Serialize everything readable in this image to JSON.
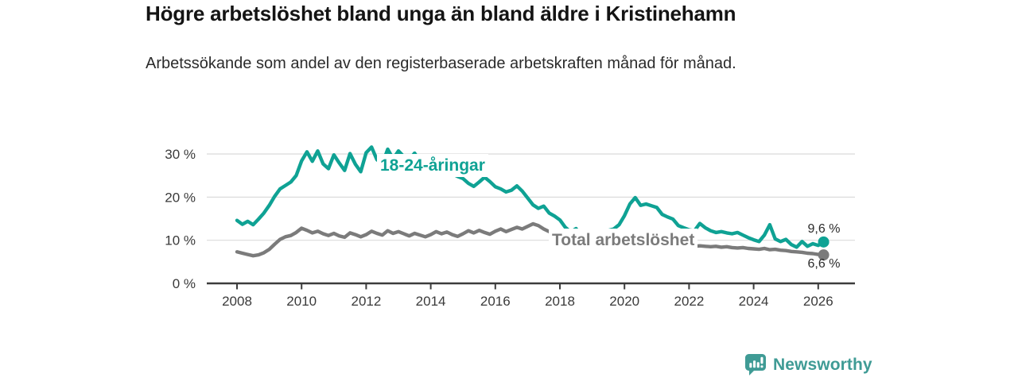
{
  "header": {
    "title": "Högre arbetslöshet bland unga än bland äldre i Kristinehamn",
    "subtitle": "Arbetssökande som andel av den registerbaserade arbetskraften månad för månad."
  },
  "chart_data": {
    "type": "line",
    "title": "Högre arbetslöshet bland unga än bland äldre i Kristinehamn",
    "subtitle": "Arbetssökande som andel av den registerbaserade arbetskraften månad för månad.",
    "unit": "%",
    "x_start": 2008,
    "x_step_years": 0.166667,
    "xlim": [
      2007.05,
      2027.1
    ],
    "ylim": [
      0,
      33
    ],
    "grid": "horizontal-only",
    "legend": "inline-labels-on-lines",
    "grid_color": "#dbdbdb",
    "axis_color": "#3c3c3c",
    "tick_text_color": "#3a3a3a",
    "x_ticks": [
      2008,
      2010,
      2012,
      2014,
      2016,
      2018,
      2020,
      2022,
      2024,
      2026
    ],
    "y_ticks": [
      {
        "value": 0,
        "label": "0 %"
      },
      {
        "value": 10,
        "label": "10 %"
      },
      {
        "value": 20,
        "label": "20 %"
      },
      {
        "value": 30,
        "label": "30 %"
      }
    ],
    "series": [
      {
        "name": "18-24-åringar",
        "color": "#0fa294",
        "end_label": "9,6 %",
        "end_value": 9.6,
        "values": [
          14.6,
          13.7,
          14.4,
          13.6,
          14.9,
          16.3,
          18.1,
          20.2,
          21.9,
          22.7,
          23.5,
          25.0,
          28.4,
          30.5,
          28.3,
          30.7,
          27.7,
          26.6,
          29.8,
          27.9,
          26.2,
          30.1,
          27.6,
          25.9,
          30.3,
          31.6,
          28.7,
          27.6,
          31.1,
          28.9,
          30.7,
          29.4,
          28.6,
          30.2,
          28.3,
          27.5,
          27.9,
          26.8,
          27.4,
          26.2,
          25.4,
          24.8,
          24.3,
          23.2,
          22.5,
          23.5,
          24.6,
          23.6,
          22.4,
          21.9,
          21.2,
          21.6,
          22.6,
          21.4,
          19.8,
          18.2,
          17.4,
          17.9,
          16.3,
          15.6,
          14.7,
          13.0,
          11.9,
          12.7,
          10.9,
          10.3,
          10.1,
          10.5,
          11.7,
          12.3,
          12.6,
          13.6,
          15.7,
          18.4,
          19.9,
          18.1,
          18.4,
          18.0,
          17.6,
          16.0,
          15.4,
          14.9,
          13.4,
          12.9,
          12.4,
          12.2,
          13.9,
          12.9,
          12.2,
          11.8,
          12.0,
          11.7,
          11.5,
          11.8,
          11.2,
          10.6,
          10.1,
          9.7,
          11.2,
          13.6,
          10.3,
          9.7,
          10.2,
          9.0,
          8.4,
          9.7,
          8.6,
          9.2,
          8.8,
          9.6
        ]
      },
      {
        "name": "Total arbetslöshet",
        "color": "#7b7b7b",
        "end_label": "6,6 %",
        "end_value": 6.6,
        "values": [
          7.3,
          7.0,
          6.7,
          6.4,
          6.6,
          7.1,
          7.9,
          9.1,
          10.2,
          10.8,
          11.1,
          11.8,
          12.8,
          12.3,
          11.7,
          12.1,
          11.5,
          11.1,
          11.6,
          11.0,
          10.7,
          11.7,
          11.3,
          10.8,
          11.3,
          12.1,
          11.6,
          11.2,
          12.2,
          11.6,
          12.0,
          11.5,
          11.0,
          11.6,
          11.2,
          10.8,
          11.3,
          12.0,
          11.5,
          11.9,
          11.3,
          10.9,
          11.5,
          12.2,
          11.7,
          12.3,
          11.8,
          11.4,
          12.1,
          12.6,
          12.0,
          12.5,
          13.0,
          12.6,
          13.2,
          13.8,
          13.4,
          12.6,
          12.0,
          11.4,
          10.9,
          10.5,
          10.1,
          10.3,
          9.9,
          9.6,
          9.4,
          9.2,
          9.4,
          9.6,
          9.8,
          10.0,
          10.4,
          11.0,
          11.3,
          11.0,
          10.8,
          10.5,
          10.2,
          9.9,
          9.6,
          9.3,
          9.0,
          8.8,
          8.7,
          8.6,
          8.7,
          8.6,
          8.5,
          8.6,
          8.4,
          8.5,
          8.3,
          8.2,
          8.3,
          8.1,
          8.0,
          7.9,
          8.1,
          7.8,
          7.9,
          7.7,
          7.6,
          7.4,
          7.3,
          7.2,
          7.0,
          6.9,
          6.7,
          6.6
        ]
      }
    ]
  },
  "branding": {
    "logo_text": "Newsworthy",
    "logo_color": "#3f9b95",
    "logo_icon": "bar-chart-speech-bubble-icon"
  }
}
